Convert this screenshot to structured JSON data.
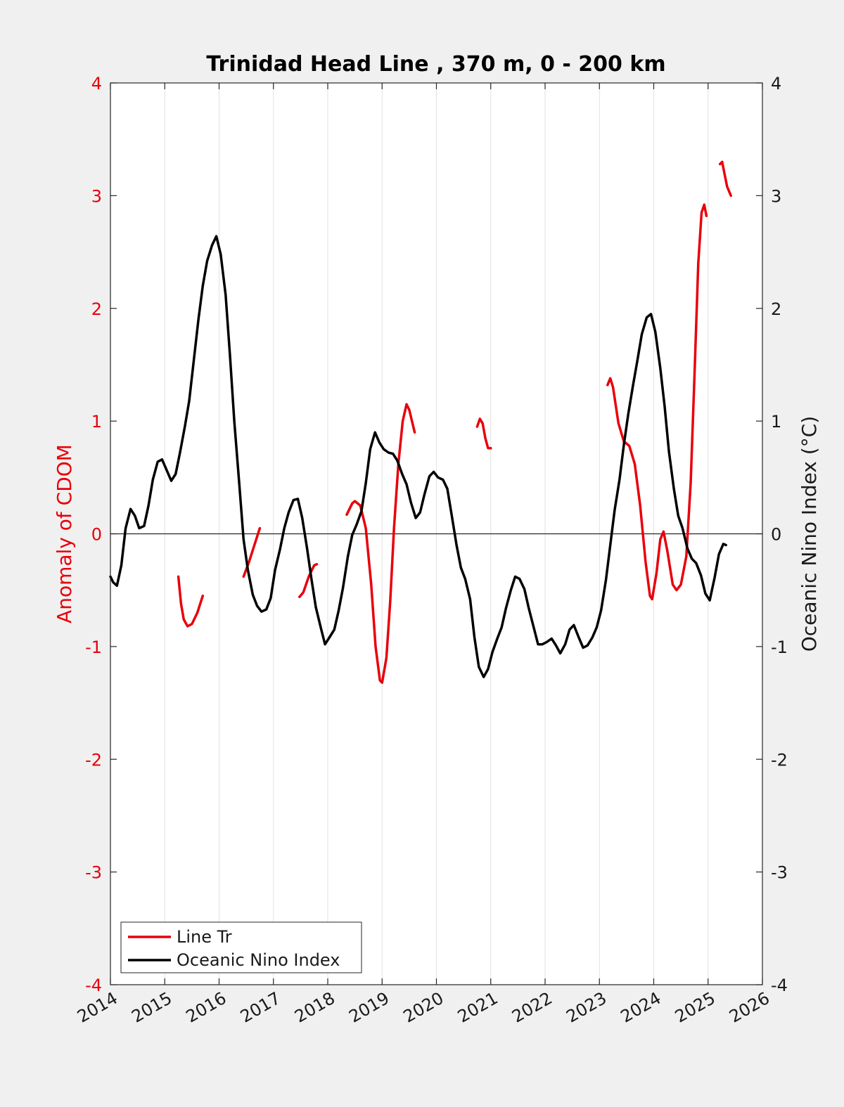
{
  "chart_data": {
    "type": "line",
    "title": "Trinidad Head Line , 370 m, 0 - 200 km",
    "xlim": [
      2014,
      2026
    ],
    "x_ticks": [
      "2014",
      "2015",
      "2016",
      "2017",
      "2018",
      "2019",
      "2020",
      "2021",
      "2022",
      "2023",
      "2024",
      "2025",
      "2026"
    ],
    "y_left": {
      "label": "Anomaly of CDOM",
      "lim": [
        -4,
        4
      ],
      "ticks": [
        "-4",
        "-3",
        "-2",
        "-1",
        "0",
        "1",
        "2",
        "3",
        "4"
      ],
      "color": "#e8000b"
    },
    "y_right": {
      "label": "Oceanic Nino Index (°C)",
      "lim": [
        -4,
        4
      ],
      "ticks": [
        "-4",
        "-3",
        "-2",
        "-1",
        "0",
        "1",
        "2",
        "3",
        "4"
      ],
      "color": "#1a1a1a"
    },
    "grid": "vertical",
    "legend_position": "bottom-left",
    "series": [
      {
        "name": "Line Tr",
        "axis": "left",
        "color": "#e8000b",
        "segments": [
          [
            [
              2015.25,
              -0.38
            ],
            [
              2015.3,
              -0.62
            ],
            [
              2015.35,
              -0.76
            ],
            [
              2015.42,
              -0.82
            ],
            [
              2015.5,
              -0.8
            ],
            [
              2015.6,
              -0.7
            ],
            [
              2015.7,
              -0.55
            ]
          ],
          [
            [
              2016.45,
              -0.38
            ],
            [
              2016.55,
              -0.25
            ],
            [
              2016.65,
              -0.1
            ],
            [
              2016.75,
              0.05
            ]
          ],
          [
            [
              2017.48,
              -0.56
            ],
            [
              2017.55,
              -0.52
            ],
            [
              2017.65,
              -0.38
            ],
            [
              2017.75,
              -0.28
            ],
            [
              2017.8,
              -0.27
            ]
          ],
          [
            [
              2018.35,
              0.17
            ],
            [
              2018.45,
              0.27
            ],
            [
              2018.5,
              0.29
            ],
            [
              2018.6,
              0.25
            ],
            [
              2018.7,
              0.05
            ],
            [
              2018.8,
              -0.45
            ],
            [
              2018.88,
              -1.0
            ],
            [
              2018.96,
              -1.3
            ],
            [
              2019.0,
              -1.32
            ],
            [
              2019.08,
              -1.1
            ],
            [
              2019.15,
              -0.6
            ],
            [
              2019.22,
              0.05
            ],
            [
              2019.3,
              0.62
            ],
            [
              2019.38,
              1.0
            ],
            [
              2019.45,
              1.15
            ],
            [
              2019.5,
              1.1
            ],
            [
              2019.6,
              0.9
            ]
          ],
          [
            [
              2020.75,
              0.95
            ],
            [
              2020.8,
              1.02
            ],
            [
              2020.85,
              0.98
            ],
            [
              2020.9,
              0.85
            ],
            [
              2020.95,
              0.76
            ],
            [
              2021.0,
              0.76
            ]
          ],
          [
            [
              2023.15,
              1.32
            ],
            [
              2023.2,
              1.38
            ],
            [
              2023.25,
              1.3
            ],
            [
              2023.35,
              0.98
            ],
            [
              2023.45,
              0.82
            ],
            [
              2023.55,
              0.78
            ],
            [
              2023.65,
              0.62
            ],
            [
              2023.75,
              0.25
            ],
            [
              2023.85,
              -0.25
            ],
            [
              2023.93,
              -0.55
            ],
            [
              2023.97,
              -0.58
            ],
            [
              2024.05,
              -0.35
            ],
            [
              2024.12,
              -0.05
            ],
            [
              2024.18,
              0.02
            ],
            [
              2024.25,
              -0.15
            ],
            [
              2024.35,
              -0.45
            ],
            [
              2024.42,
              -0.5
            ],
            [
              2024.5,
              -0.45
            ],
            [
              2024.6,
              -0.2
            ],
            [
              2024.68,
              0.45
            ],
            [
              2024.75,
              1.4
            ],
            [
              2024.82,
              2.4
            ],
            [
              2024.88,
              2.85
            ],
            [
              2024.93,
              2.92
            ],
            [
              2024.97,
              2.82
            ]
          ],
          [
            [
              2025.22,
              3.28
            ],
            [
              2025.26,
              3.3
            ],
            [
              2025.3,
              3.2
            ],
            [
              2025.35,
              3.08
            ],
            [
              2025.42,
              3.0
            ]
          ]
        ]
      },
      {
        "name": "Oceanic Nino Index",
        "axis": "right",
        "color": "#000000",
        "segments": [
          [
            [
              2014.0,
              -0.38
            ],
            [
              2014.05,
              -0.43
            ],
            [
              2014.12,
              -0.46
            ],
            [
              2014.2,
              -0.28
            ],
            [
              2014.28,
              0.05
            ],
            [
              2014.37,
              0.22
            ],
            [
              2014.45,
              0.16
            ],
            [
              2014.53,
              0.05
            ],
            [
              2014.62,
              0.07
            ],
            [
              2014.7,
              0.25
            ],
            [
              2014.78,
              0.48
            ],
            [
              2014.87,
              0.64
            ],
            [
              2014.95,
              0.66
            ],
            [
              2015.03,
              0.57
            ],
            [
              2015.12,
              0.47
            ],
            [
              2015.2,
              0.53
            ],
            [
              2015.28,
              0.72
            ],
            [
              2015.37,
              0.95
            ],
            [
              2015.45,
              1.18
            ],
            [
              2015.53,
              1.52
            ],
            [
              2015.62,
              1.9
            ],
            [
              2015.7,
              2.2
            ],
            [
              2015.78,
              2.42
            ],
            [
              2015.87,
              2.56
            ],
            [
              2015.95,
              2.64
            ],
            [
              2016.03,
              2.48
            ],
            [
              2016.12,
              2.12
            ],
            [
              2016.2,
              1.58
            ],
            [
              2016.28,
              1.0
            ],
            [
              2016.37,
              0.45
            ],
            [
              2016.45,
              -0.05
            ],
            [
              2016.53,
              -0.32
            ],
            [
              2016.62,
              -0.54
            ],
            [
              2016.7,
              -0.64
            ],
            [
              2016.78,
              -0.69
            ],
            [
              2016.87,
              -0.67
            ],
            [
              2016.95,
              -0.57
            ],
            [
              2017.03,
              -0.32
            ],
            [
              2017.12,
              -0.14
            ],
            [
              2017.2,
              0.05
            ],
            [
              2017.28,
              0.19
            ],
            [
              2017.37,
              0.3
            ],
            [
              2017.45,
              0.31
            ],
            [
              2017.53,
              0.14
            ],
            [
              2017.62,
              -0.13
            ],
            [
              2017.7,
              -0.4
            ],
            [
              2017.78,
              -0.65
            ],
            [
              2017.87,
              -0.83
            ],
            [
              2017.95,
              -0.98
            ],
            [
              2018.03,
              -0.92
            ],
            [
              2018.12,
              -0.85
            ],
            [
              2018.2,
              -0.68
            ],
            [
              2018.28,
              -0.48
            ],
            [
              2018.37,
              -0.2
            ],
            [
              2018.45,
              -0.01
            ],
            [
              2018.53,
              0.08
            ],
            [
              2018.62,
              0.2
            ],
            [
              2018.7,
              0.45
            ],
            [
              2018.78,
              0.75
            ],
            [
              2018.87,
              0.9
            ],
            [
              2018.95,
              0.81
            ],
            [
              2019.03,
              0.75
            ],
            [
              2019.12,
              0.72
            ],
            [
              2019.2,
              0.71
            ],
            [
              2019.28,
              0.65
            ],
            [
              2019.37,
              0.53
            ],
            [
              2019.45,
              0.44
            ],
            [
              2019.53,
              0.28
            ],
            [
              2019.62,
              0.14
            ],
            [
              2019.7,
              0.19
            ],
            [
              2019.78,
              0.35
            ],
            [
              2019.87,
              0.51
            ],
            [
              2019.95,
              0.55
            ],
            [
              2020.03,
              0.5
            ],
            [
              2020.12,
              0.48
            ],
            [
              2020.2,
              0.4
            ],
            [
              2020.28,
              0.17
            ],
            [
              2020.37,
              -0.1
            ],
            [
              2020.45,
              -0.3
            ],
            [
              2020.53,
              -0.4
            ],
            [
              2020.62,
              -0.58
            ],
            [
              2020.7,
              -0.92
            ],
            [
              2020.78,
              -1.18
            ],
            [
              2020.87,
              -1.27
            ],
            [
              2020.95,
              -1.2
            ],
            [
              2021.03,
              -1.05
            ],
            [
              2021.12,
              -0.93
            ],
            [
              2021.2,
              -0.83
            ],
            [
              2021.28,
              -0.66
            ],
            [
              2021.37,
              -0.5
            ],
            [
              2021.45,
              -0.38
            ],
            [
              2021.53,
              -0.4
            ],
            [
              2021.62,
              -0.49
            ],
            [
              2021.7,
              -0.66
            ],
            [
              2021.78,
              -0.81
            ],
            [
              2021.87,
              -0.98
            ],
            [
              2021.95,
              -0.98
            ],
            [
              2022.03,
              -0.96
            ],
            [
              2022.12,
              -0.93
            ],
            [
              2022.2,
              -0.99
            ],
            [
              2022.28,
              -1.06
            ],
            [
              2022.37,
              -0.98
            ],
            [
              2022.45,
              -0.85
            ],
            [
              2022.53,
              -0.81
            ],
            [
              2022.62,
              -0.92
            ],
            [
              2022.7,
              -1.01
            ],
            [
              2022.78,
              -0.99
            ],
            [
              2022.87,
              -0.92
            ],
            [
              2022.95,
              -0.83
            ],
            [
              2023.03,
              -0.68
            ],
            [
              2023.12,
              -0.41
            ],
            [
              2023.2,
              -0.1
            ],
            [
              2023.28,
              0.21
            ],
            [
              2023.37,
              0.48
            ],
            [
              2023.45,
              0.79
            ],
            [
              2023.53,
              1.06
            ],
            [
              2023.62,
              1.32
            ],
            [
              2023.7,
              1.54
            ],
            [
              2023.78,
              1.77
            ],
            [
              2023.87,
              1.92
            ],
            [
              2023.95,
              1.95
            ],
            [
              2024.03,
              1.79
            ],
            [
              2024.12,
              1.47
            ],
            [
              2024.2,
              1.13
            ],
            [
              2024.28,
              0.73
            ],
            [
              2024.37,
              0.4
            ],
            [
              2024.45,
              0.16
            ],
            [
              2024.53,
              0.05
            ],
            [
              2024.62,
              -0.13
            ],
            [
              2024.7,
              -0.22
            ],
            [
              2024.78,
              -0.26
            ],
            [
              2024.87,
              -0.37
            ],
            [
              2024.95,
              -0.53
            ],
            [
              2025.03,
              -0.59
            ],
            [
              2025.12,
              -0.39
            ],
            [
              2025.2,
              -0.18
            ],
            [
              2025.28,
              -0.09
            ],
            [
              2025.33,
              -0.1
            ]
          ]
        ]
      }
    ]
  }
}
